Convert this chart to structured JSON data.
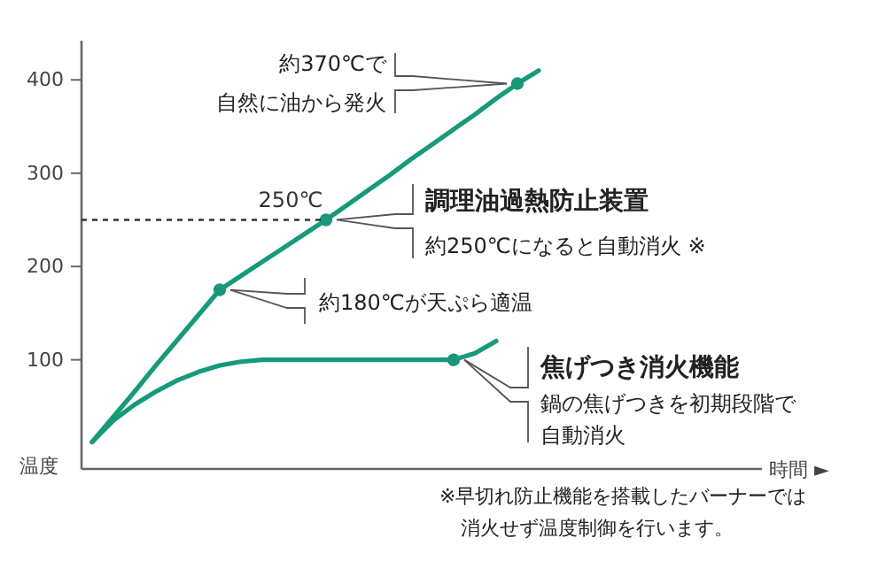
{
  "chart_data": {
    "type": "line",
    "ylabel": "温度",
    "categories": [
      null,
      null,
      null,
      null,
      null,
      null,
      null,
      null,
      null,
      null,
      null,
      null,
      null,
      null,
      null,
      null,
      null,
      null,
      null,
      null,
      null,
      null,
      null,
      null,
      null,
      null,
      null,
      null,
      null,
      null,
      null,
      null
    ],
    "series": [
      {
        "color": "#17997a",
        "values": [
          12,
          39,
          66,
          94,
          121,
          148,
          175,
          190,
          205,
          220,
          235,
          250,
          266,
          282,
          298,
          315,
          331,
          347,
          363,
          380,
          396,
          410,
          null,
          null,
          null,
          null,
          null,
          null,
          null,
          null,
          null,
          null
        ]
      },
      {
        "color": "#17997a",
        "values": [
          12,
          35,
          52,
          66,
          78,
          87,
          94,
          98,
          100,
          100,
          100,
          100,
          100,
          100,
          100,
          100,
          100,
          100,
          107,
          120,
          null,
          null,
          null,
          null,
          null,
          null,
          null,
          null,
          null,
          null,
          null,
          null
        ]
      },
      {
        "type": "scatter",
        "color": "#17997a",
        "values": [
          null,
          null,
          null,
          null,
          null,
          null,
          175,
          null,
          null,
          null,
          null,
          250,
          null,
          null,
          null,
          null,
          null,
          100,
          null,
          null,
          396,
          null,
          null,
          null,
          null,
          null,
          null,
          null,
          null,
          null,
          null,
          null
        ]
      }
    ],
    "ylim": [
      -17,
      442
    ],
    "yticks": [
      100,
      200,
      300,
      400
    ],
    "tick_labels": "y",
    "grid": false,
    "ref_lines": [
      {
        "axis": "y",
        "value": 250,
        "label": "250℃",
        "line_style": "dashed",
        "color": "#333333"
      }
    ],
    "annotations": [
      "約180℃が天ぷら適温",
      "調理油過熱防止装置",
      "約250℃になると自動消火 ※",
      "約370℃で自然に油から発火",
      "焦げつき消火機能",
      "鍋の焦げつきを初期段階で自動消火",
      "※早切れ防止機能を搭載したバーナーでは消火せず温度制御を行います。",
      "時間 ►"
    ]
  }
}
